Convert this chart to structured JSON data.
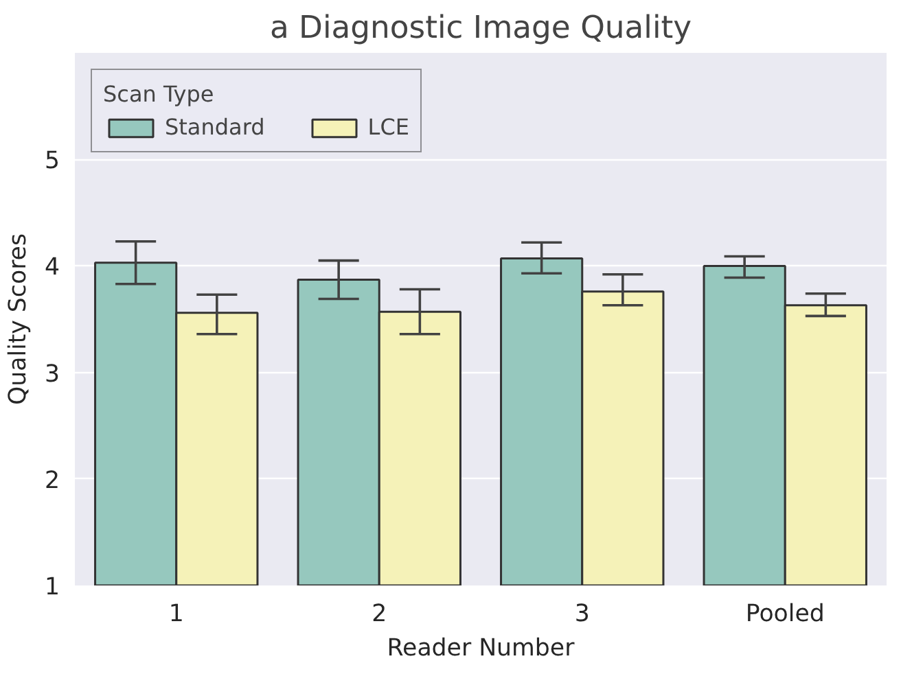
{
  "chart_data": {
    "type": "bar",
    "title": "a Diagnostic Image Quality",
    "xlabel": "Reader Number",
    "ylabel": "Quality Scores",
    "legend_title": "Scan Type",
    "categories": [
      "1",
      "2",
      "3",
      "Pooled"
    ],
    "series": [
      {
        "name": "Standard",
        "color": "#96c8be",
        "values": [
          4.03,
          3.87,
          4.07,
          4.0
        ],
        "errors": [
          [
            3.83,
            4.23
          ],
          [
            3.69,
            4.05
          ],
          [
            3.93,
            4.22
          ],
          [
            3.89,
            4.09
          ]
        ]
      },
      {
        "name": "LCE",
        "color": "#f5f2b8",
        "values": [
          3.56,
          3.57,
          3.76,
          3.63
        ],
        "errors": [
          [
            3.36,
            3.73
          ],
          [
            3.36,
            3.78
          ],
          [
            3.63,
            3.92
          ],
          [
            3.53,
            3.74
          ]
        ]
      }
    ],
    "ylim": [
      1,
      6
    ],
    "yticks": [
      1,
      2,
      3,
      4,
      5
    ],
    "grid": "y",
    "legend": "top left"
  }
}
